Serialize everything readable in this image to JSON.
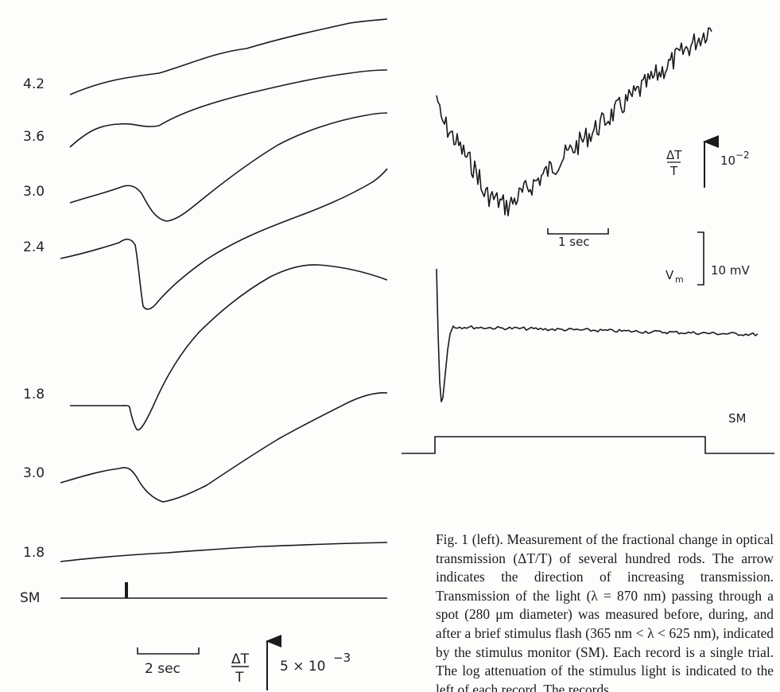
{
  "left_panel": {
    "trace_labels": [
      "4.2",
      "3.6",
      "3.0",
      "2.4",
      "1.8",
      "3.0",
      "1.8"
    ],
    "stimulus_label": "SM",
    "time_scale_label": "2 sec",
    "y_scale": {
      "symbol_num": "ΔT",
      "symbol_den": "T",
      "value": "5 × 10",
      "exponent": "−3"
    }
  },
  "right_top_panel": {
    "time_scale_label": "1 sec",
    "y_scale": {
      "symbol_num": "ΔT",
      "symbol_den": "T",
      "value": "10",
      "exponent": "−2"
    }
  },
  "right_bottom_panel": {
    "vm_label": "V",
    "vm_sub": "m",
    "vm_scale": "10 mV",
    "stimulus_label": "SM"
  },
  "caption": {
    "text": "Fig. 1 (left). Measurement of the fractional change in optical transmission (ΔT/T) of several hundred rods. The arrow indicates the direction of increasing transmission. Transmission of the light (λ = 870 nm) passing through a spot (280 μm diameter) was measured before, during, and after a brief stimulus flash (365 nm < λ < 625 nm), indicated by the stimulus monitor (SM). Each record is a single trial. The log attenuation of the stimulus light is indicated to the left of each record. The records"
  }
}
